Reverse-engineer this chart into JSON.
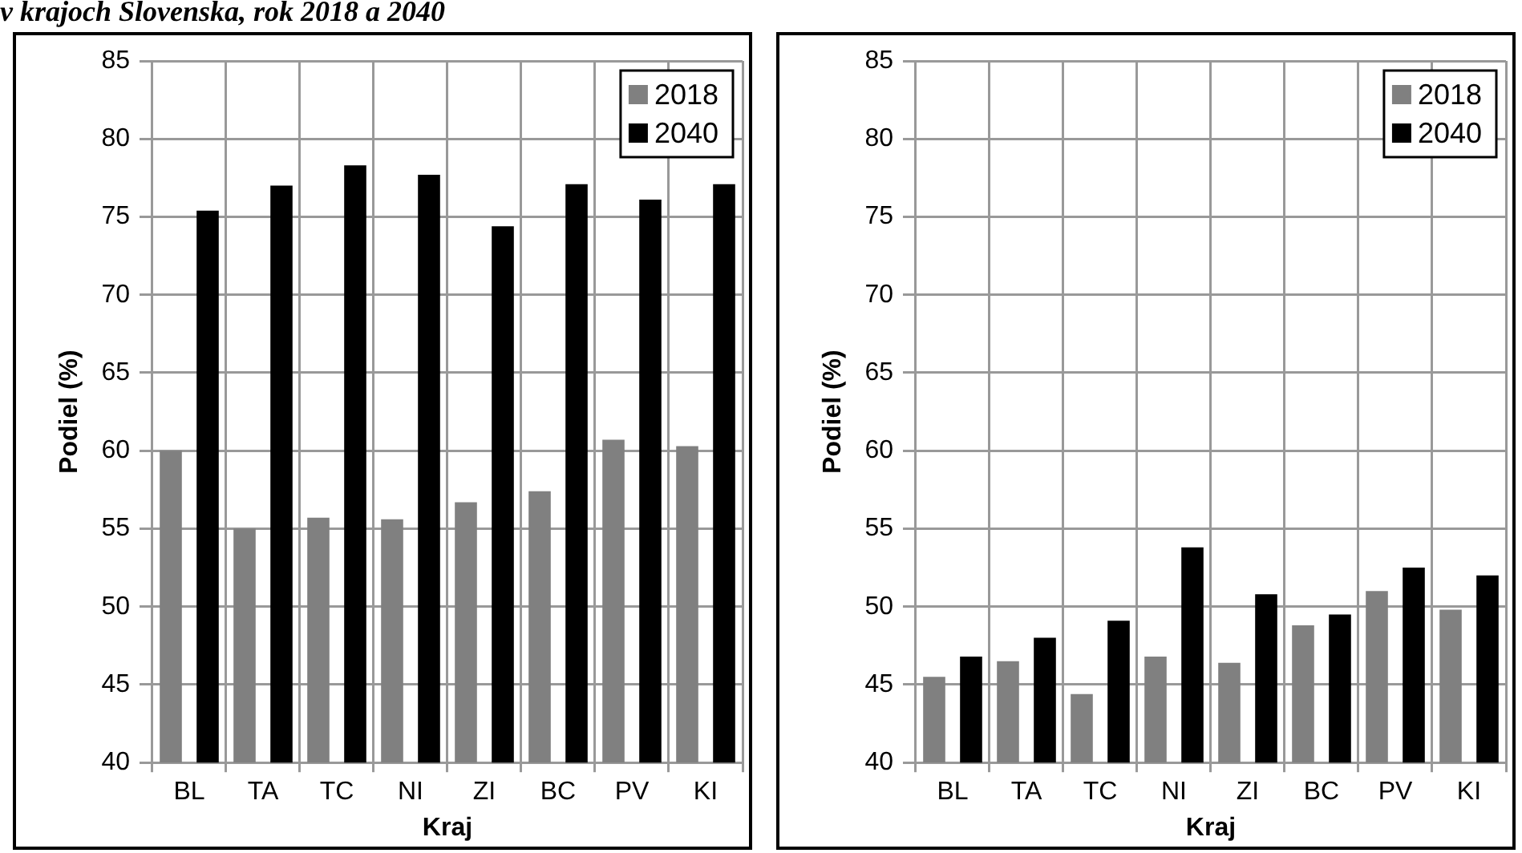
{
  "chart_data": [
    {
      "type": "bar",
      "title": "v krajoch Slovenska, rok 2018 a 2040",
      "xlabel": "Kraj",
      "ylabel": "Podiel (%)",
      "categories": [
        "BL",
        "TA",
        "TC",
        "NI",
        "ZI",
        "BC",
        "PV",
        "KI"
      ],
      "series": [
        {
          "name": "2018",
          "color": "#808080",
          "values": [
            60.0,
            55.0,
            55.7,
            55.6,
            56.7,
            57.4,
            60.7,
            60.3
          ]
        },
        {
          "name": "2040",
          "color": "#000000",
          "values": [
            75.4,
            77.0,
            78.3,
            77.7,
            74.4,
            77.1,
            76.1,
            77.1
          ]
        }
      ],
      "ylim": [
        40,
        85
      ],
      "yticks": [
        40,
        45,
        50,
        55,
        60,
        65,
        70,
        75,
        80,
        85
      ],
      "grid": true,
      "legend": "top right"
    },
    {
      "type": "bar",
      "xlabel": "Kraj",
      "ylabel": "Podiel (%)",
      "categories": [
        "BL",
        "TA",
        "TC",
        "NI",
        "ZI",
        "BC",
        "PV",
        "KI"
      ],
      "series": [
        {
          "name": "2018",
          "color": "#808080",
          "values": [
            45.5,
            46.5,
            44.4,
            46.8,
            46.4,
            48.8,
            51.0,
            49.8
          ]
        },
        {
          "name": "2040",
          "color": "#000000",
          "values": [
            46.8,
            48.0,
            49.1,
            53.8,
            50.8,
            49.5,
            52.5,
            52.0
          ]
        }
      ],
      "ylim": [
        40,
        85
      ],
      "yticks": [
        40,
        45,
        50,
        55,
        60,
        65,
        70,
        75,
        80,
        85
      ],
      "grid": true,
      "legend": "top right"
    }
  ]
}
